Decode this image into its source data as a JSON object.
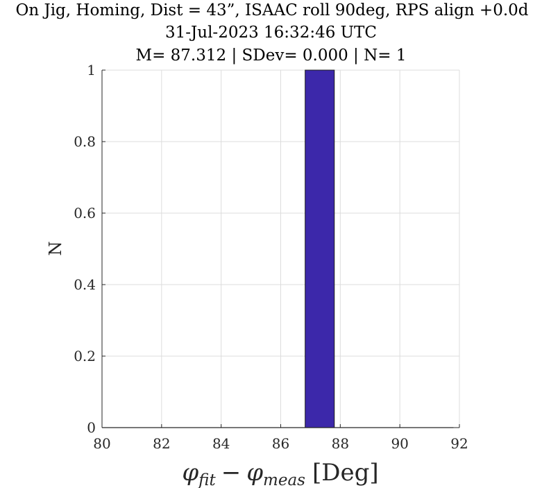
{
  "chart_data": {
    "type": "bar",
    "title": [
      "On Jig, Homing, Dist = 43”, ISAAC roll 90deg, RPS align +0.0d",
      "31-Jul-2023 16:32:46 UTC",
      "M= 87.312 | SDev= 0.000 | N= 1"
    ],
    "xlabel_main": "φ",
    "xlabel_sub1": "fit",
    "xlabel_minus": "−",
    "xlabel_main2": "φ",
    "xlabel_sub2": "meas",
    "xlabel_unit": "[Deg]",
    "ylabel": "N",
    "xlim": [
      80,
      92
    ],
    "ylim": [
      0,
      1
    ],
    "xticks": [
      80,
      82,
      84,
      86,
      88,
      90,
      92
    ],
    "yticks": [
      0,
      0.2,
      0.4,
      0.6,
      0.8,
      1
    ],
    "ytick_labels": [
      "0",
      "0.2",
      "0.4",
      "0.6",
      "0.8",
      "1"
    ],
    "bins": [
      {
        "x0": 86.82,
        "x1": 87.8,
        "value": 1
      }
    ],
    "baseline": [
      80,
      91.8
    ],
    "grid": true,
    "bar_color": "#3c28aa"
  }
}
